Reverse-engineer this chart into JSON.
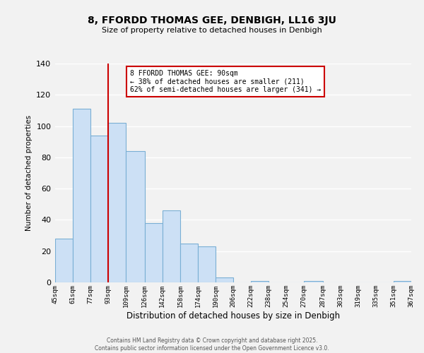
{
  "title": "8, FFORDD THOMAS GEE, DENBIGH, LL16 3JU",
  "subtitle": "Size of property relative to detached houses in Denbigh",
  "xlabel": "Distribution of detached houses by size in Denbigh",
  "ylabel": "Number of detached properties",
  "bar_color": "#cce0f5",
  "bar_edge_color": "#7aafd4",
  "bins": [
    45,
    61,
    77,
    93,
    109,
    126,
    142,
    158,
    174,
    190,
    206,
    222,
    238,
    254,
    270,
    287,
    303,
    319,
    335,
    351,
    367
  ],
  "bin_labels": [
    "45sqm",
    "61sqm",
    "77sqm",
    "93sqm",
    "109sqm",
    "126sqm",
    "142sqm",
    "158sqm",
    "174sqm",
    "190sqm",
    "206sqm",
    "222sqm",
    "238sqm",
    "254sqm",
    "270sqm",
    "287sqm",
    "303sqm",
    "319sqm",
    "335sqm",
    "351sqm",
    "367sqm"
  ],
  "values": [
    28,
    111,
    94,
    102,
    84,
    38,
    46,
    25,
    23,
    3,
    0,
    1,
    0,
    0,
    1,
    0,
    0,
    0,
    0,
    1
  ],
  "ylim": [
    0,
    140
  ],
  "yticks": [
    0,
    20,
    40,
    60,
    80,
    100,
    120,
    140
  ],
  "property_line_x": 93,
  "annotation_title": "8 FFORDD THOMAS GEE: 90sqm",
  "annotation_line1": "← 38% of detached houses are smaller (211)",
  "annotation_line2": "62% of semi-detached houses are larger (341) →",
  "footer_line1": "Contains HM Land Registry data © Crown copyright and database right 2025.",
  "footer_line2": "Contains public sector information licensed under the Open Government Licence v3.0.",
  "background_color": "#f2f2f2",
  "grid_color": "#ffffff",
  "annotation_box_color": "#ffffff",
  "annotation_box_edge": "#cc0000",
  "property_line_color": "#cc0000"
}
